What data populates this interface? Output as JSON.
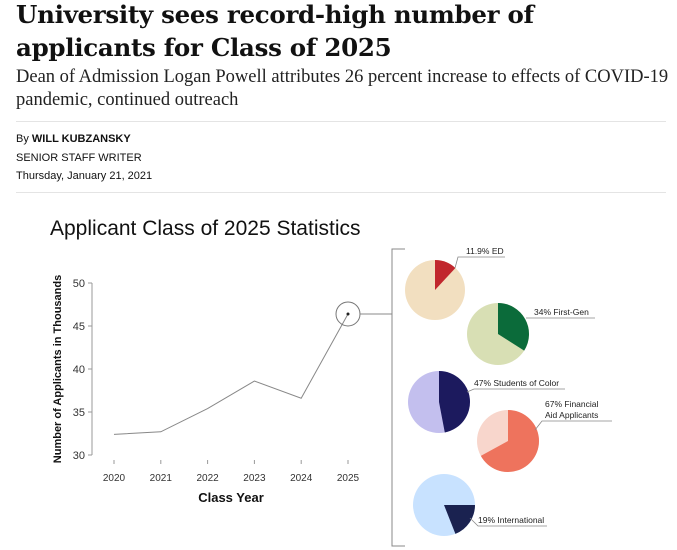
{
  "article": {
    "headline": "University sees record-high number of applicants for Class of 2025",
    "dek": "Dean of Admission Logan Powell attributes 26 percent increase to effects of COVID-19 pandemic, continued outreach",
    "by_prefix": "By",
    "author": "WILL KUBZANSKY",
    "author_title": "SENIOR STAFF WRITER",
    "date": "Thursday, January 21, 2021"
  },
  "chart_data": [
    {
      "type": "line",
      "title": "Applicant Class of 2025 Statistics",
      "xlabel": "Class Year",
      "ylabel": "Number of Applicants in Thousands",
      "x": [
        "2020",
        "2021",
        "2022",
        "2023",
        "2024",
        "2025"
      ],
      "y": [
        32.4,
        32.7,
        35.4,
        38.6,
        36.6,
        46.4
      ],
      "ylim": [
        30,
        50
      ],
      "yticks": [
        "30",
        "35",
        "40",
        "45",
        "50"
      ],
      "grid": false,
      "highlight": "2025",
      "line_color": "#888888"
    },
    {
      "type": "pie",
      "pies": [
        {
          "label": "11.9% ED",
          "value": 11.9,
          "color": "#c1272d",
          "rest_color": "#f2dfc0"
        },
        {
          "label": "34% First-Gen",
          "value": 34,
          "color": "#0b6b3a",
          "rest_color": "#d8dfb4"
        },
        {
          "label": "47% Students of Color",
          "value": 47,
          "color": "#1c1a5e",
          "rest_color": "#c3bfee"
        },
        {
          "label": "67% Financial Aid Applicants",
          "label_lines": [
            "67% Financial",
            "Aid Applicants"
          ],
          "value": 67,
          "color": "#ee735d",
          "rest_color": "#f8d6cc"
        },
        {
          "label": "19% International",
          "value": 19,
          "color": "#1a2250",
          "rest_color": "#c8e2ff"
        }
      ]
    }
  ]
}
